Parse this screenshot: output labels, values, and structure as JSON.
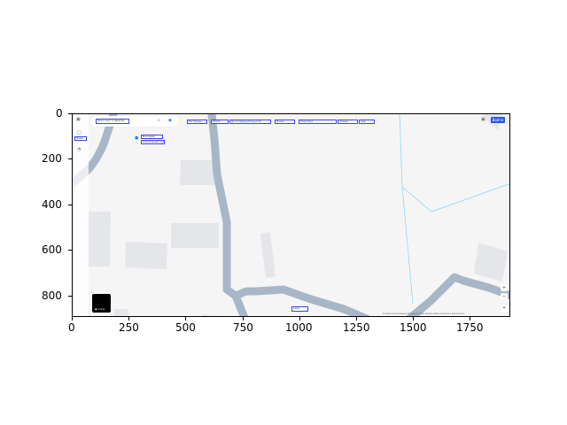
{
  "axes": {
    "x_ticks": [
      "0",
      "250",
      "500",
      "750",
      "1000",
      "1250",
      "1500",
      "1750"
    ],
    "y_ticks": [
      "0",
      "200",
      "400",
      "600",
      "800"
    ]
  },
  "map_ui": {
    "search_placeholder": "Поиск мест и адресов",
    "topbar_items": [
      "Рестораны",
      "Отели",
      "Достопримечательности",
      "Музеи",
      "Транспорт",
      "Аптеки",
      "ещё"
    ],
    "left_rail_items": [
      "Меню"
    ],
    "place_labels": [
      "Мой адрес",
      "Контрольная точка"
    ],
    "bottom_center_label": "Слои",
    "layers_label": "Слои",
    "login_label": "Войти",
    "attribution_text": "Условия использования  Отзывы  Реклама  Яндекс Карты  Открыть в приложении"
  }
}
